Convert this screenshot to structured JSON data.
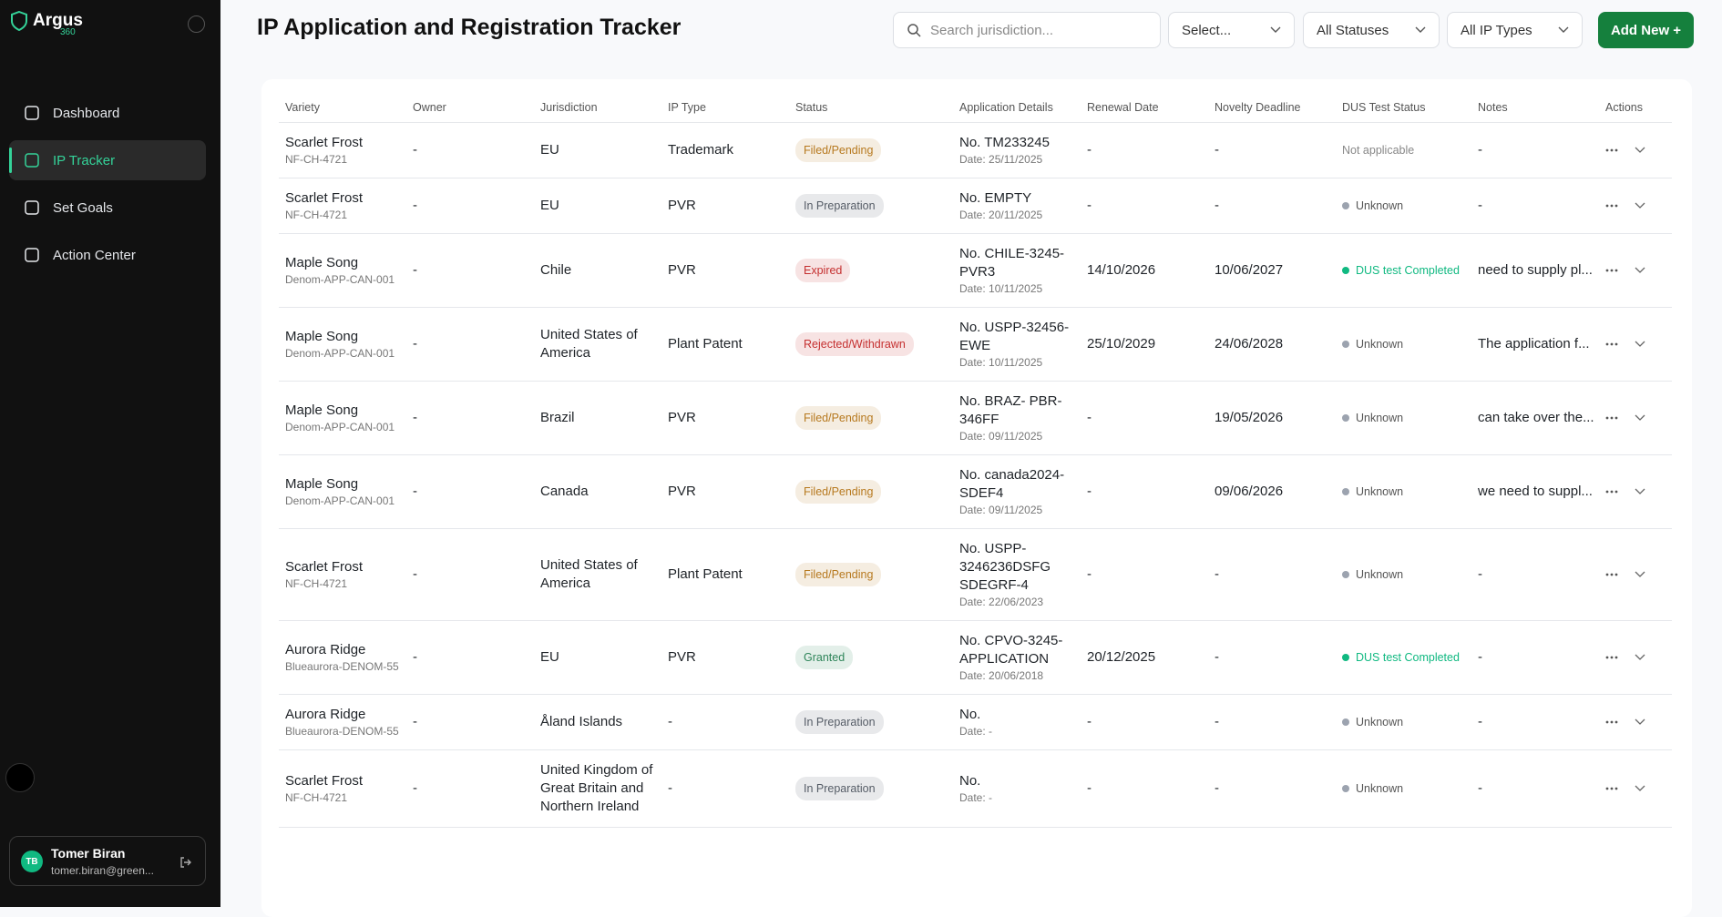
{
  "sidebar": {
    "brand": "Argus",
    "brand_sub": "360",
    "nav": [
      "Dashboard",
      "IP Tracker",
      "Set Goals",
      "Action Center"
    ],
    "active": 1,
    "accent": "#34d399",
    "user": {
      "initials": "TB",
      "name": "Tomer Biran",
      "email": "tomer.biran@green..."
    }
  },
  "header": {
    "title": "IP Application and Registration Tracker",
    "search_placeholder": "Search jurisdiction...",
    "filters": [
      "Select...",
      "All Statuses",
      "All IP Types"
    ],
    "add_button": "Add New +"
  },
  "table": {
    "columns": [
      "Variety",
      "Owner",
      "Jurisdiction",
      "IP Type",
      "Status",
      "Application Details",
      "Renewal Date",
      "Novelty Deadline",
      "DUS Test Status",
      "Notes",
      "Actions"
    ],
    "rows": [
      {
        "variety": "Scarlet Frost",
        "code": "NF-CH-4721",
        "owner": "-",
        "jurisdiction": "EU",
        "ip_type": "Trademark",
        "status": "Filed/Pending",
        "status_color": "#b7791f",
        "app_no": "No. TM233245",
        "app_date": "Date: 25/11/2025",
        "renewal": "-",
        "novelty": "-",
        "dus": "Not applicable",
        "dus_color": null,
        "notes": "-"
      },
      {
        "variety": "Scarlet Frost",
        "code": "NF-CH-4721",
        "owner": "-",
        "jurisdiction": "EU",
        "ip_type": "PVR",
        "status": "In Preparation",
        "status_color": "#555c66",
        "app_no": "No. EMPTY",
        "app_date": "Date: 20/11/2025",
        "renewal": "-",
        "novelty": "-",
        "dus": "Unknown",
        "dus_color": "#9ca3af",
        "notes": "-"
      },
      {
        "variety": "Maple Song",
        "code": "Denom-APP-CAN-001",
        "owner": "-",
        "jurisdiction": "Chile",
        "ip_type": "PVR",
        "status": "Expired",
        "status_color": "#c53030",
        "app_no": "No. CHILE-3245-PVR3",
        "app_date": "Date: 10/11/2025",
        "renewal": "14/10/2026",
        "novelty": "10/06/2027",
        "dus": "DUS test Completed",
        "dus_color": "#10b981",
        "notes": "need to supply pl..."
      },
      {
        "variety": "Maple Song",
        "code": "Denom-APP-CAN-001",
        "owner": "-",
        "jurisdiction": "United States of America",
        "ip_type": "Plant Patent",
        "status": "Rejected/Withdrawn",
        "status_color": "#c53030",
        "app_no": "No. USPP-32456-EWE",
        "app_date": "Date: 10/11/2025",
        "renewal": "25/10/2029",
        "novelty": "24/06/2028",
        "dus": "Unknown",
        "dus_color": "#9ca3af",
        "notes": "The application f..."
      },
      {
        "variety": "Maple Song",
        "code": "Denom-APP-CAN-001",
        "owner": "-",
        "jurisdiction": "Brazil",
        "ip_type": "PVR",
        "status": "Filed/Pending",
        "status_color": "#b7791f",
        "app_no": "No. BRAZ- PBR-346FF",
        "app_date": "Date: 09/11/2025",
        "renewal": "-",
        "novelty": "19/05/2026",
        "dus": "Unknown",
        "dus_color": "#9ca3af",
        "notes": "can take over the..."
      },
      {
        "variety": "Maple Song",
        "code": "Denom-APP-CAN-001",
        "owner": "-",
        "jurisdiction": "Canada",
        "ip_type": "PVR",
        "status": "Filed/Pending",
        "status_color": "#b7791f",
        "app_no": "No. canada2024-SDEF4",
        "app_date": "Date: 09/11/2025",
        "renewal": "-",
        "novelty": "09/06/2026",
        "dus": "Unknown",
        "dus_color": "#9ca3af",
        "notes": "we need to suppl..."
      },
      {
        "variety": "Scarlet Frost",
        "code": "NF-CH-4721",
        "owner": "-",
        "jurisdiction": "United States of America",
        "ip_type": "Plant Patent",
        "status": "Filed/Pending",
        "status_color": "#b7791f",
        "app_no": "No. USPP-3246236DSFG SDEGRF-4",
        "app_date": "Date: 22/06/2023",
        "renewal": "-",
        "novelty": "-",
        "dus": "Unknown",
        "dus_color": "#9ca3af",
        "notes": "-"
      },
      {
        "variety": "Aurora Ridge",
        "code": "Blueaurora-DENOM-55",
        "owner": "-",
        "jurisdiction": "EU",
        "ip_type": "PVR",
        "status": "Granted",
        "status_color": "#2f855a",
        "app_no": "No. CPVO-3245-APPLICATION",
        "app_date": "Date: 20/06/2018",
        "renewal": "20/12/2025",
        "novelty": "-",
        "dus": "DUS test Completed",
        "dus_color": "#10b981",
        "notes": "-"
      },
      {
        "variety": "Aurora Ridge",
        "code": "Blueaurora-DENOM-55",
        "owner": "-",
        "jurisdiction": "Åland Islands",
        "ip_type": "-",
        "status": "In Preparation",
        "status_color": "#555c66",
        "app_no": "No.",
        "app_date": "Date: -",
        "renewal": "-",
        "novelty": "-",
        "dus": "Unknown",
        "dus_color": "#9ca3af",
        "notes": "-"
      },
      {
        "variety": "Scarlet Frost",
        "code": "NF-CH-4721",
        "owner": "-",
        "jurisdiction": "United Kingdom of Great Britain and Northern Ireland",
        "ip_type": "-",
        "status": "In Preparation",
        "status_color": "#555c66",
        "app_no": "No.",
        "app_date": "Date: -",
        "renewal": "-",
        "novelty": "-",
        "dus": "Unknown",
        "dus_color": "#9ca3af",
        "notes": "-"
      }
    ]
  }
}
